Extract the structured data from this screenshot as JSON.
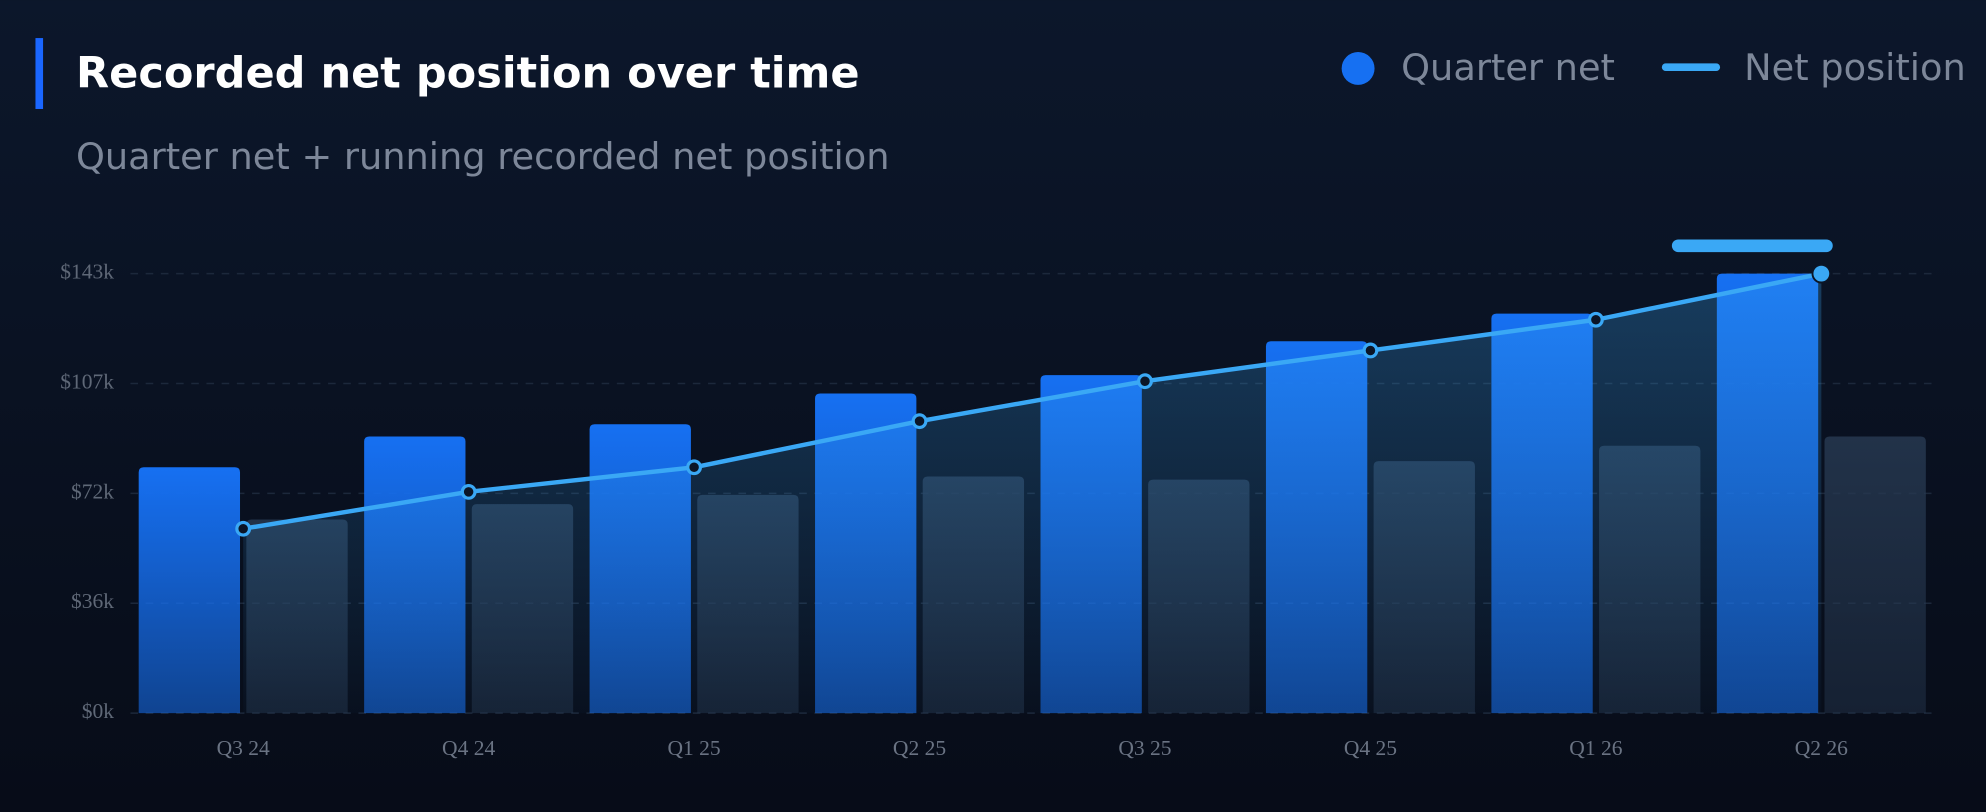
{
  "chart_data": {
    "type": "bar",
    "title": "Recorded net position over time",
    "subtitle": "Quarter net + running recorded net position",
    "categories": [
      "Q3 24",
      "Q4 24",
      "Q1 25",
      "Q2 25",
      "Q3 25",
      "Q4 25",
      "Q1 26",
      "Q2 26"
    ],
    "series": [
      {
        "name": "Quarter net",
        "type": "bar",
        "color": "#1670f2",
        "values": [
          80,
          90,
          94,
          104,
          110,
          121,
          130,
          143
        ]
      },
      {
        "type": "bar",
        "color": "#263850",
        "values": [
          63,
          68,
          71,
          77,
          76,
          82,
          87,
          90
        ]
      },
      {
        "name": "Net position",
        "type": "line",
        "color": "#3aa8f5",
        "values": [
          60,
          72,
          80,
          95,
          108,
          118,
          128,
          143
        ]
      }
    ],
    "ylim": [
      0,
      143
    ],
    "yticks": [
      {
        "value": 0,
        "label": "$0k"
      },
      {
        "value": 35.75,
        "label": "$36k"
      },
      {
        "value": 71.5,
        "label": "$72k"
      },
      {
        "value": 107.25,
        "label": "$107k"
      },
      {
        "value": 143,
        "label": "$143k"
      }
    ],
    "grid": true
  }
}
